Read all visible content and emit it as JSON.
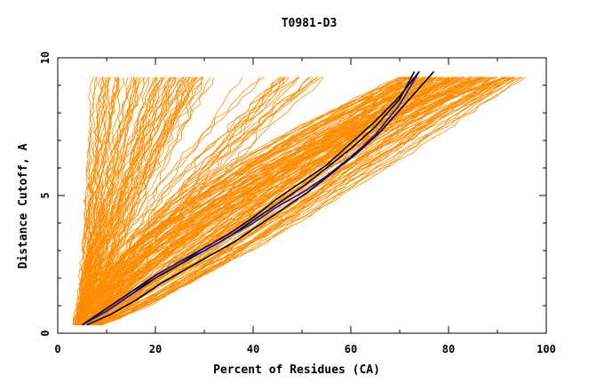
{
  "chart_data": {
    "type": "line",
    "title": "T0981-D3",
    "xlabel": "Percent of Residues (CA)",
    "ylabel": "Distance Cutoff, A",
    "xlim": [
      0,
      100
    ],
    "ylim": [
      0,
      10
    ],
    "x_ticks": [
      "0",
      "20",
      "40",
      "60",
      "80",
      "100"
    ],
    "y_ticks": [
      "0",
      "5",
      "10"
    ],
    "grid": false,
    "colors": {
      "orange": "#ff8c00",
      "black": "#000000",
      "blue": "#1010c0"
    },
    "series": [
      {
        "color": "#000000",
        "points": [
          [
            5,
            0.3
          ],
          [
            10,
            0.8
          ],
          [
            15,
            1.4
          ],
          [
            20,
            2.0
          ],
          [
            25,
            2.5
          ],
          [
            30,
            3.0
          ],
          [
            35,
            3.5
          ],
          [
            40,
            4.1
          ],
          [
            45,
            4.7
          ],
          [
            50,
            5.3
          ],
          [
            55,
            6.0
          ],
          [
            60,
            6.7
          ],
          [
            65,
            7.5
          ],
          [
            70,
            8.5
          ],
          [
            73,
            9.5
          ]
        ]
      },
      {
        "color": "#000000",
        "points": [
          [
            5,
            0.3
          ],
          [
            10,
            0.9
          ],
          [
            15,
            1.5
          ],
          [
            20,
            2.1
          ],
          [
            25,
            2.6
          ],
          [
            30,
            3.1
          ],
          [
            35,
            3.6
          ],
          [
            40,
            4.2
          ],
          [
            45,
            4.9
          ],
          [
            50,
            5.5
          ],
          [
            55,
            6.1
          ],
          [
            60,
            6.9
          ],
          [
            65,
            7.7
          ],
          [
            70,
            8.6
          ],
          [
            74,
            9.5
          ]
        ]
      },
      {
        "color": "#000000",
        "points": [
          [
            6,
            0.3
          ],
          [
            11,
            0.7
          ],
          [
            16,
            1.2
          ],
          [
            21,
            1.8
          ],
          [
            26,
            2.3
          ],
          [
            31,
            2.8
          ],
          [
            36,
            3.3
          ],
          [
            41,
            3.9
          ],
          [
            46,
            4.5
          ],
          [
            51,
            5.1
          ],
          [
            56,
            5.8
          ],
          [
            61,
            6.5
          ],
          [
            66,
            7.3
          ],
          [
            71,
            8.3
          ],
          [
            77,
            9.5
          ]
        ]
      },
      {
        "color": "#1010c0",
        "points": [
          [
            5,
            0.3
          ],
          [
            10,
            0.8
          ],
          [
            15,
            1.4
          ],
          [
            20,
            2.1
          ],
          [
            25,
            2.6
          ],
          [
            30,
            3.0
          ],
          [
            35,
            3.5
          ],
          [
            40,
            4.0
          ],
          [
            45,
            4.6
          ],
          [
            50,
            5.1
          ],
          [
            55,
            5.7
          ],
          [
            60,
            6.4
          ],
          [
            65,
            7.2
          ],
          [
            70,
            8.3
          ],
          [
            74,
            9.5
          ]
        ]
      }
    ]
  }
}
